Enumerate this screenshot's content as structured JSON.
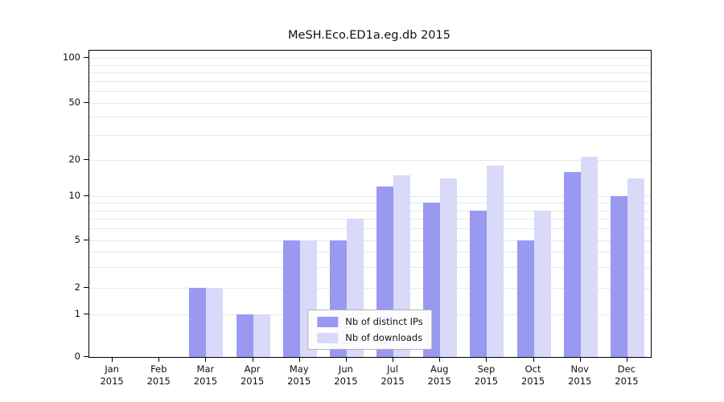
{
  "figure": {
    "title": "MeSH.Eco.ED1a.eg.db 2015"
  },
  "chart_data": {
    "type": "bar",
    "title": "MeSH.Eco.ED1a.eg.db 2015",
    "categories": [
      "Jan 2015",
      "Feb 2015",
      "Mar 2015",
      "Apr 2015",
      "May 2015",
      "Jun 2015",
      "Jul 2015",
      "Aug 2015",
      "Sep 2015",
      "Oct 2015",
      "Nov 2015",
      "Dec 2015"
    ],
    "series": [
      {
        "name": "Nb of distinct IPs",
        "color": "#9999f1",
        "values": [
          0,
          0,
          2,
          1,
          5,
          5,
          12,
          9,
          8,
          5,
          16,
          10
        ]
      },
      {
        "name": "Nb of downloads",
        "color": "#d9d9f9",
        "values": [
          0,
          0,
          2,
          1,
          5,
          7,
          15,
          14,
          18,
          8,
          21,
          14
        ]
      }
    ],
    "xlabel": "",
    "ylabel": "",
    "yscale": "log (0 baseline)",
    "yticks": [
      0,
      1,
      2,
      5,
      10,
      20,
      50,
      100
    ],
    "minor_gridlines": [
      1,
      2,
      3,
      4,
      5,
      6,
      7,
      8,
      9,
      10,
      20,
      30,
      40,
      50,
      60,
      70,
      80,
      90,
      100
    ],
    "ylim": [
      0,
      100
    ],
    "grid": "horizontal",
    "legend_position": "lower center inside plot",
    "colors": {
      "bar_ips": "#9999f1",
      "bar_downloads": "#d9d9f9",
      "grid": "#e7e7e7",
      "axis": "#000000",
      "legend_border": "#b3b3b3",
      "background": "#ffffff"
    }
  }
}
